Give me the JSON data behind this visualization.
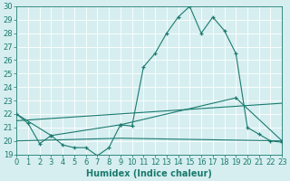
{
  "xlabel": "Humidex (Indice chaleur)",
  "line1_x": [
    0,
    1,
    2,
    3,
    4,
    5,
    6,
    7,
    8,
    9,
    10,
    11,
    12,
    13,
    14,
    15,
    16,
    17,
    18,
    19,
    20,
    21,
    22,
    23
  ],
  "line1_y": [
    22.0,
    21.3,
    19.8,
    20.4,
    19.7,
    19.5,
    19.5,
    18.9,
    19.5,
    21.2,
    21.1,
    25.5,
    26.5,
    28.0,
    29.2,
    30.0,
    28.0,
    29.2,
    28.2,
    26.5,
    21.0,
    20.5,
    20.0,
    19.9
  ],
  "line2_x": [
    0,
    3,
    9,
    19,
    23
  ],
  "line2_y": [
    22.0,
    20.4,
    21.2,
    23.2,
    20.0
  ],
  "line3_x": [
    0,
    23
  ],
  "line3_y": [
    21.5,
    22.8
  ],
  "line4_x": [
    0,
    9,
    23
  ],
  "line4_y": [
    20.0,
    20.2,
    20.0
  ],
  "ylim": [
    19,
    30
  ],
  "xlim": [
    0,
    23
  ],
  "yticks": [
    19,
    20,
    21,
    22,
    23,
    24,
    25,
    26,
    27,
    28,
    29,
    30
  ],
  "xticks": [
    0,
    1,
    2,
    3,
    4,
    5,
    6,
    7,
    8,
    9,
    10,
    11,
    12,
    13,
    14,
    15,
    16,
    17,
    18,
    19,
    20,
    21,
    22,
    23
  ],
  "line_color": "#1a7a6e",
  "bg_color": "#d6eef0",
  "grid_color": "#ffffff",
  "tick_color": "#1a7a6e",
  "fontsize_label": 7,
  "fontsize_tick": 6
}
